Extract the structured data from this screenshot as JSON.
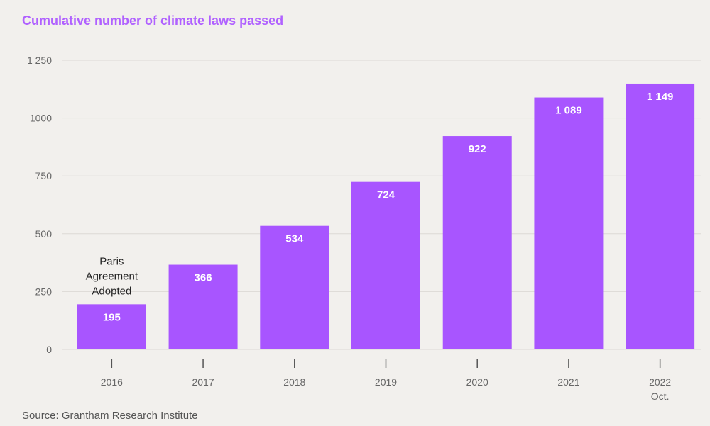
{
  "chart_data": {
    "type": "bar",
    "title": "Cumulative number of climate laws passed",
    "source": "Source: Grantham Research Institute",
    "categories": [
      {
        "label": "2016",
        "sub": ""
      },
      {
        "label": "2017",
        "sub": ""
      },
      {
        "label": "2018",
        "sub": ""
      },
      {
        "label": "2019",
        "sub": ""
      },
      {
        "label": "2020",
        "sub": ""
      },
      {
        "label": "2021",
        "sub": ""
      },
      {
        "label": "2022",
        "sub": "Oct."
      }
    ],
    "values": [
      195,
      366,
      534,
      724,
      922,
      1089,
      1149
    ],
    "value_labels": [
      "195",
      "366",
      "534",
      "724",
      "922",
      "1 089",
      "1 149"
    ],
    "yticks": [
      0,
      250,
      500,
      750,
      1000,
      1250
    ],
    "ytick_labels": [
      "0",
      "250",
      "500",
      "750",
      "1000",
      "1 250"
    ],
    "ylim": [
      0,
      1250
    ],
    "grid": true,
    "bar_color": "#a855ff",
    "annotation": {
      "category_index": 0,
      "lines": [
        "Paris",
        "Agreement",
        "Adopted"
      ]
    }
  }
}
